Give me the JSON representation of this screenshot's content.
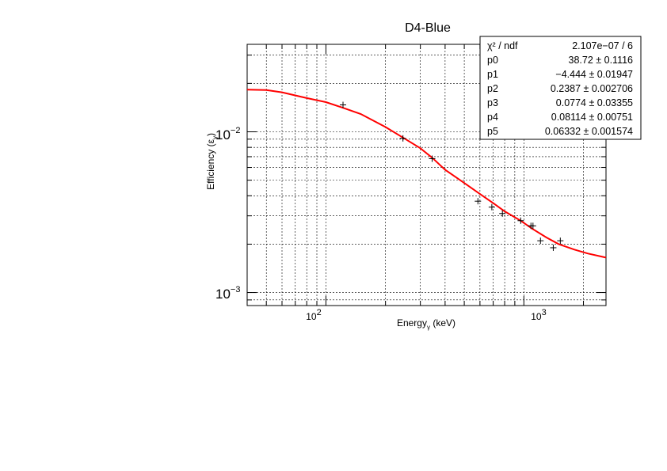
{
  "chart_data": {
    "type": "scatter",
    "title": "D4-Blue",
    "xlabel_main": "Energy",
    "xlabel_sub": "γ",
    "xlabel_unit": " (keV)",
    "ylabel_main": "Efficiency (ε",
    "ylabel_sub": "γ",
    "ylabel_close": ")",
    "xscale": "log",
    "yscale": "log",
    "xlim": [
      40,
      2600
    ],
    "ylim": [
      0.00083,
      0.035
    ],
    "grid": true,
    "x_ticks": [
      {
        "base": "10",
        "exp": "2"
      },
      {
        "base": "10",
        "exp": "3"
      }
    ],
    "y_ticks": [
      {
        "base": "10",
        "exp": "−3"
      },
      {
        "base": "10",
        "exp": "−2"
      }
    ],
    "data_points": [
      {
        "x": 122,
        "y": 0.0147
      },
      {
        "x": 245,
        "y": 0.0091
      },
      {
        "x": 344,
        "y": 0.0068
      },
      {
        "x": 586,
        "y": 0.0037
      },
      {
        "x": 689,
        "y": 0.0034
      },
      {
        "x": 779,
        "y": 0.0031
      },
      {
        "x": 964,
        "y": 0.0028
      },
      {
        "x": 1086,
        "y": 0.0026
      },
      {
        "x": 1112,
        "y": 0.0026
      },
      {
        "x": 1213,
        "y": 0.0021
      },
      {
        "x": 1408,
        "y": 0.0019
      },
      {
        "x": 1528,
        "y": 0.0021
      }
    ],
    "fit_curve": {
      "color": "#ff0000",
      "x": [
        40,
        50,
        60,
        80,
        100,
        122,
        150,
        200,
        245,
        300,
        344,
        400,
        500,
        600,
        700,
        800,
        964,
        1100,
        1300,
        1500,
        1800,
        2100,
        2600
      ],
      "y": [
        0.0183,
        0.0182,
        0.0176,
        0.0162,
        0.0153,
        0.0141,
        0.0129,
        0.0107,
        0.0092,
        0.0079,
        0.0069,
        0.0058,
        0.0048,
        0.0041,
        0.0036,
        0.0032,
        0.0028,
        0.0025,
        0.0022,
        0.002,
        0.00185,
        0.00175,
        0.00165
      ]
    },
    "stats_box": {
      "rows": [
        {
          "label": "χ² / ndf",
          "value": "2.107e−07 / 6"
        },
        {
          "label": "p0",
          "value": "38.72 ± 0.1116"
        },
        {
          "label": "p1",
          "value": "−4.444 ± 0.01947"
        },
        {
          "label": "p2",
          "value": "0.2387 ± 0.002706"
        },
        {
          "label": "p3",
          "value": "0.0774 ± 0.03355"
        },
        {
          "label": "p4",
          "value": "0.08114 ± 0.00751"
        },
        {
          "label": "p5",
          "value": "0.06332 ± 0.001574"
        }
      ]
    }
  }
}
